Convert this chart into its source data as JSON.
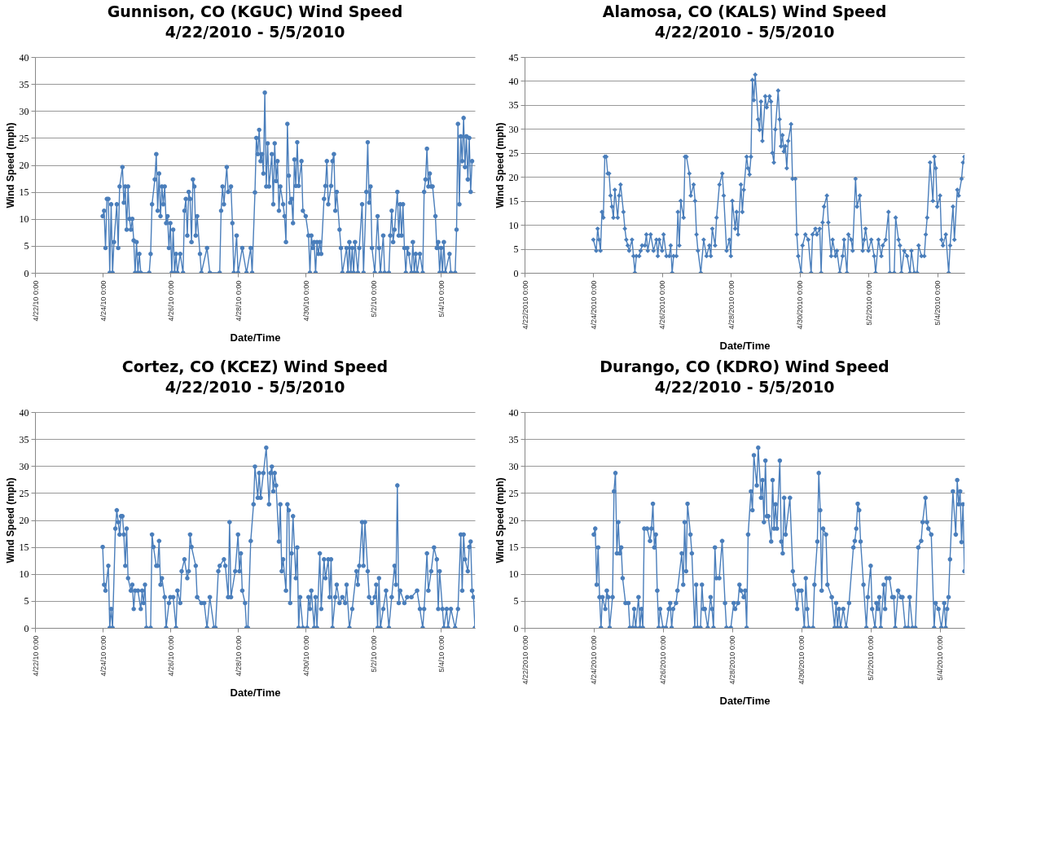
{
  "chart_data": [
    {
      "type": "line",
      "title": "Gunnison, CO (KGUC) Wind Speed",
      "subtitle": "4/22/2010 - 5/5/2010",
      "xlabel": "Date/Time",
      "ylabel": "Wind Speed (mph)",
      "grid": "y",
      "marker": "circle",
      "line_style": "solid",
      "xlim": [
        "2010-04-22T00:00",
        "2010-05-05T00:00"
      ],
      "ylim": [
        0,
        40
      ],
      "yticks": [
        0,
        5,
        10,
        15,
        20,
        25,
        30,
        35,
        40
      ],
      "xticks": [
        {
          "value": "2010-04-22",
          "label": "4/22/10 0:00"
        },
        {
          "value": "2010-04-24",
          "label": "4/24/10 0:00"
        },
        {
          "value": "2010-04-26",
          "label": "4/26/10 0:00"
        },
        {
          "value": "2010-04-28",
          "label": "4/28/10 0:00"
        },
        {
          "value": "2010-04-30",
          "label": "4/30/10 0:00"
        },
        {
          "value": "2010-05-02",
          "label": "5/2/10 0:00"
        },
        {
          "value": "2010-05-04",
          "label": "5/4/10 0:00"
        }
      ],
      "x": [
        "2010-04-24T00:00",
        "2010-04-24T01:00",
        "2010-04-24T02:00",
        "2010-04-24T03:00",
        "2010-04-24T04:00",
        "2010-04-24T05:00",
        "2010-04-24T06:00",
        "2010-04-24T07:00",
        "2010-04-24T08:00",
        "2010-04-24T10:00",
        "2010-04-24T11:00",
        "2010-04-24T12:00",
        "2010-04-24T14:00",
        "2010-04-24T15:00",
        "2010-04-24T16:00",
        "2010-04-24T17:00",
        "2010-04-24T18:00",
        "2010-04-24T19:00",
        "2010-04-24T20:00",
        "2010-04-24T21:00",
        "2010-04-24T22:00",
        "2010-04-24T23:00",
        "2010-04-25T00:00",
        "2010-04-25T01:00",
        "2010-04-25T02:00",
        "2010-04-25T03:00",
        "2010-04-25T09:00",
        "2010-04-25T10:00",
        "2010-04-25T11:00",
        "2010-04-25T13:00",
        "2010-04-25T14:00",
        "2010-04-25T15:00",
        "2010-04-25T16:00",
        "2010-04-25T17:00",
        "2010-04-25T18:00",
        "2010-04-25T19:00",
        "2010-04-25T20:00",
        "2010-04-25T21:00",
        "2010-04-25T22:00",
        "2010-04-25T23:00",
        "2010-04-26T00:00",
        "2010-04-26T01:00",
        "2010-04-26T02:00",
        "2010-04-26T03:00",
        "2010-04-26T04:00",
        "2010-04-26T05:00",
        "2010-04-26T07:00",
        "2010-04-26T09:00",
        "2010-04-26T10:00",
        "2010-04-26T11:00",
        "2010-04-26T12:00",
        "2010-04-26T13:00",
        "2010-04-26T14:00",
        "2010-04-26T15:00",
        "2010-04-26T16:00",
        "2010-04-26T17:00",
        "2010-04-26T18:00",
        "2010-04-26T19:00",
        "2010-04-26T21:00",
        "2010-04-26T22:00",
        "2010-04-27T02:00",
        "2010-04-27T04:00",
        "2010-04-27T11:00",
        "2010-04-27T12:00",
        "2010-04-27T13:00",
        "2010-04-27T14:00",
        "2010-04-27T16:00",
        "2010-04-27T17:00",
        "2010-04-27T19:00",
        "2010-04-27T20:00",
        "2010-04-27T21:00",
        "2010-04-27T23:00",
        "2010-04-28T00:00",
        "2010-04-28T03:00",
        "2010-04-28T06:00",
        "2010-04-28T09:00",
        "2010-04-28T10:00",
        "2010-04-28T12:00",
        "2010-04-28T13:00",
        "2010-04-28T14:00",
        "2010-04-28T15:00",
        "2010-04-28T16:00",
        "2010-04-28T17:00",
        "2010-04-28T18:00",
        "2010-04-28T19:00",
        "2010-04-28T20:00",
        "2010-04-28T21:00",
        "2010-04-28T22:00",
        "2010-04-29T00:00",
        "2010-04-29T01:00",
        "2010-04-29T02:00",
        "2010-04-29T03:00",
        "2010-04-29T04:00",
        "2010-04-29T05:00",
        "2010-04-29T06:00",
        "2010-04-29T08:00",
        "2010-04-29T09:00",
        "2010-04-29T10:00",
        "2010-04-29T11:00",
        "2010-04-29T12:00",
        "2010-04-29T13:00",
        "2010-04-29T14:00",
        "2010-04-29T15:00",
        "2010-04-29T16:00",
        "2010-04-29T17:00",
        "2010-04-29T18:00",
        "2010-04-29T19:00",
        "2010-04-29T21:00",
        "2010-04-29T22:00",
        "2010-04-30T00:00",
        "2010-04-30T02:00",
        "2010-04-30T03:00",
        "2010-04-30T04:00",
        "2010-04-30T05:00",
        "2010-04-30T06:00",
        "2010-04-30T07:00",
        "2010-04-30T08:00",
        "2010-04-30T09:00",
        "2010-04-30T10:00",
        "2010-04-30T11:00",
        "2010-04-30T13:00",
        "2010-04-30T14:00",
        "2010-04-30T15:00",
        "2010-04-30T16:00",
        "2010-04-30T18:00",
        "2010-04-30T19:00",
        "2010-04-30T20:00",
        "2010-04-30T21:00",
        "2010-04-30T22:00",
        "2010-05-01T00:00",
        "2010-05-01T01:00",
        "2010-05-01T02:00",
        "2010-05-01T05:00",
        "2010-05-01T06:00",
        "2010-05-01T07:00",
        "2010-05-01T08:00",
        "2010-05-01T09:00",
        "2010-05-01T10:00",
        "2010-05-01T11:00",
        "2010-05-01T13:00",
        "2010-05-01T14:00",
        "2010-05-01T16:00",
        "2010-05-01T17:00",
        "2010-05-01T19:00",
        "2010-05-01T20:00",
        "2010-05-01T21:00",
        "2010-05-01T22:00",
        "2010-05-01T23:00",
        "2010-05-02T01:00",
        "2010-05-02T03:00",
        "2010-05-02T04:00",
        "2010-05-02T05:00",
        "2010-05-02T07:00",
        "2010-05-02T08:00",
        "2010-05-02T11:00",
        "2010-05-02T12:00",
        "2010-05-02T13:00",
        "2010-05-02T14:00",
        "2010-05-02T15:00",
        "2010-05-02T17:00",
        "2010-05-02T18:00",
        "2010-05-02T19:00",
        "2010-05-02T20:00",
        "2010-05-02T21:00",
        "2010-05-02T22:00",
        "2010-05-02T23:00",
        "2010-05-03T00:00",
        "2010-05-03T01:00",
        "2010-05-03T03:00",
        "2010-05-03T04:00",
        "2010-05-03T05:00",
        "2010-05-03T06:00",
        "2010-05-03T07:00",
        "2010-05-03T09:00",
        "2010-05-03T11:00",
        "2010-05-03T12:00",
        "2010-05-03T13:00",
        "2010-05-03T14:00",
        "2010-05-03T15:00",
        "2010-05-03T16:00",
        "2010-05-03T17:00",
        "2010-05-03T18:00",
        "2010-05-03T20:00",
        "2010-05-03T21:00",
        "2010-05-03T22:00",
        "2010-05-03T23:00",
        "2010-05-04T00:00",
        "2010-05-04T01:00",
        "2010-05-04T02:00",
        "2010-05-04T03:00",
        "2010-05-04T06:00",
        "2010-05-04T07:00",
        "2010-05-04T10:00",
        "2010-05-04T11:00",
        "2010-05-04T12:00",
        "2010-05-04T13:00",
        "2010-05-04T14:00",
        "2010-05-04T15:00",
        "2010-05-04T16:00",
        "2010-05-04T17:00",
        "2010-05-04T18:00",
        "2010-05-04T19:00",
        "2010-05-04T20:00",
        "2010-05-04T21:00",
        "2010-05-04T22:00"
      ],
      "series": [
        {
          "color": "#4a7ebb",
          "values": [
            10.5,
            11.5,
            4.6,
            13.7,
            13.7,
            0,
            12.7,
            0,
            5.7,
            12.7,
            4.6,
            16,
            19.6,
            13,
            16,
            8,
            16,
            10,
            8,
            10,
            6,
            0,
            5.7,
            0,
            3.5,
            0,
            0,
            3.5,
            12.7,
            17.3,
            22,
            11.5,
            18.4,
            10.5,
            16,
            12.7,
            16,
            9.2,
            10.5,
            4.6,
            9.2,
            0,
            8,
            0,
            3.5,
            0,
            3.5,
            0,
            11.5,
            13.7,
            6.9,
            15,
            13.7,
            5.7,
            17.3,
            16,
            6.9,
            10.5,
            3.5,
            0,
            4.6,
            0,
            0,
            11.5,
            16,
            12.7,
            19.6,
            15,
            16,
            9.2,
            0,
            6.9,
            0,
            4.6,
            0,
            4.6,
            0,
            14.9,
            25,
            22,
            26.5,
            20.7,
            22,
            18.4,
            33.4,
            16,
            24,
            16,
            22,
            12.7,
            24,
            17,
            20.7,
            11.5,
            16,
            12.7,
            10.5,
            5.7,
            27.6,
            18,
            13,
            13.7,
            9.2,
            21,
            16.1,
            24.2,
            16.1,
            20.7,
            11.5,
            10.5,
            6.9,
            0,
            6.9,
            4.6,
            5.7,
            0,
            5.7,
            3.5,
            5.7,
            3.5,
            13.7,
            16.1,
            20.7,
            12.7,
            16.1,
            20.7,
            22,
            11.5,
            15,
            8,
            4.6,
            0,
            4.6,
            0,
            5.7,
            0,
            4.6,
            0,
            5.7,
            0,
            4.6,
            12.7,
            0,
            15,
            24.2,
            13,
            16,
            4.6,
            0,
            10.5,
            4.6,
            0,
            6.9,
            0,
            0,
            6.9,
            11.5,
            5.7,
            8,
            15,
            6.9,
            12.7,
            6.9,
            12.7,
            4.6,
            0,
            4.6,
            3.5,
            0,
            5.7,
            0,
            3.5,
            0,
            3.5,
            0,
            15,
            17.3,
            23,
            16,
            18.4,
            16,
            16,
            10.5,
            4.6,
            5.7,
            0,
            4.6,
            0,
            5.7,
            0,
            3.5,
            0,
            0,
            8,
            27.6,
            12.7,
            25.3,
            20.7,
            28.7,
            19.6,
            25.3,
            17.3,
            25,
            15,
            20.7
          ]
        }
      ]
    },
    {
      "type": "line",
      "title": "Alamosa, CO (KALS) Wind Speed",
      "subtitle": "4/22/2010 - 5/5/2010",
      "xlabel": "Date/Time",
      "ylabel": "Wind Speed (mph)",
      "grid": "y",
      "marker": "diamond",
      "line_style": "solid",
      "xlim": [
        "2010-04-22T00:00",
        "2010-05-04T19:00"
      ],
      "ylim": [
        0,
        45
      ],
      "yticks": [
        0,
        5,
        10,
        15,
        20,
        25,
        30,
        35,
        40,
        45
      ],
      "xticks": [
        {
          "value": "2010-04-22",
          "label": "4/22/2010 0:00"
        },
        {
          "value": "2010-04-24",
          "label": "4/24/2010 0:00"
        },
        {
          "value": "2010-04-26",
          "label": "4/26/2010 0:00"
        },
        {
          "value": "2010-04-28",
          "label": "4/28/2010 0:00"
        },
        {
          "value": "2010-04-30",
          "label": "4/30/2010 0:00"
        },
        {
          "value": "2010-05-02",
          "label": "5/2/2010 0:00"
        },
        {
          "value": "2010-05-04",
          "label": "5/4/2010 0:00"
        }
      ],
      "x": [
        "2010-04-24T00:00",
        "2010-04-24T02:00",
        "2010-04-24T03:00",
        "2010-04-24T04:00",
        "2010-04-24T05:00",
        "2010-04-24T06:00",
        "2010-04-24T07:00",
        "2010-04-24T08:00",
        "2010-04-24T09:00",
        "2010-04-24T10:00",
        "2010-04-24T11:00",
        "2010-04-24T12:00",
        "2010-04-24T13:00",
        "2010-04-24T14:00",
        "2010-04-24T15:00",
        "2010-04-24T17:00",
        "2010-04-24T18:00",
        "2010-04-24T19:00",
        "2010-04-24T21:00",
        "2010-04-24T22:00",
        "2010-04-24T23:00",
        "2010-04-25T00:00",
        "2010-04-25T01:00",
        "2010-04-25T03:00",
        "2010-04-25T04:00",
        "2010-04-25T05:00",
        "2010-04-25T06:00",
        "2010-04-25T08:00",
        "2010-04-25T09:00",
        "2010-04-25T10:00",
        "2010-04-25T12:00",
        "2010-04-25T13:00",
        "2010-04-25T14:00",
        "2010-04-25T16:00",
        "2010-04-25T18:00",
        "2010-04-25T20:00",
        "2010-04-25T21:00",
        "2010-04-25T22:00",
        "2010-04-26T00:00",
        "2010-04-26T01:00",
        "2010-04-26T03:00",
        "2010-04-26T05:00",
        "2010-04-26T06:00",
        "2010-04-26T07:00",
        "2010-04-26T08:00",
        "2010-04-26T10:00",
        "2010-04-26T11:00",
        "2010-04-26T12:00",
        "2010-04-26T13:00",
        "2010-04-26T15:00",
        "2010-04-26T16:00",
        "2010-04-26T17:00",
        "2010-04-26T19:00",
        "2010-04-26T20:00",
        "2010-04-26T22:00",
        "2010-04-26T23:00",
        "2010-04-27T00:00",
        "2010-04-27T01:00",
        "2010-04-27T03:00",
        "2010-04-27T05:00",
        "2010-04-27T07:00",
        "2010-04-27T09:00",
        "2010-04-27T10:00",
        "2010-04-27T11:00",
        "2010-04-27T13:00",
        "2010-04-27T14:00",
        "2010-04-27T16:00",
        "2010-04-27T18:00",
        "2010-04-27T19:00",
        "2010-04-27T21:00",
        "2010-04-27T23:00",
        "2010-04-28T00:00",
        "2010-04-28T01:00",
        "2010-04-28T03:00",
        "2010-04-28T04:00",
        "2010-04-28T05:00",
        "2010-04-28T07:00",
        "2010-04-28T08:00",
        "2010-04-28T09:00",
        "2010-04-28T11:00",
        "2010-04-28T12:00",
        "2010-04-28T13:00",
        "2010-04-28T14:00",
        "2010-04-28T15:00",
        "2010-04-28T16:00",
        "2010-04-28T17:00",
        "2010-04-28T19:00",
        "2010-04-28T20:00",
        "2010-04-28T21:00",
        "2010-04-28T22:00",
        "2010-04-29T00:00",
        "2010-04-29T01:00",
        "2010-04-29T03:00",
        "2010-04-29T04:00",
        "2010-04-29T05:00",
        "2010-04-29T06:00",
        "2010-04-29T07:00",
        "2010-04-29T09:00",
        "2010-04-29T10:00",
        "2010-04-29T11:00",
        "2010-04-29T12:00",
        "2010-04-29T13:00",
        "2010-04-29T14:00",
        "2010-04-29T15:00",
        "2010-04-29T16:00",
        "2010-04-29T18:00",
        "2010-04-29T19:00",
        "2010-04-29T21:00",
        "2010-04-29T22:00",
        "2010-04-29T23:00",
        "2010-04-30T01:00",
        "2010-04-30T02:00",
        "2010-04-30T04:00",
        "2010-04-30T06:00",
        "2010-04-30T08:00",
        "2010-04-30T09:00",
        "2010-04-30T11:00",
        "2010-04-30T12:00",
        "2010-04-30T14:00",
        "2010-04-30T15:00",
        "2010-04-30T16:00",
        "2010-04-30T17:00",
        "2010-04-30T19:00",
        "2010-04-30T20:00",
        "2010-04-30T22:00",
        "2010-04-30T23:00",
        "2010-05-01T01:00",
        "2010-05-01T02:00",
        "2010-05-01T04:00",
        "2010-05-01T06:00",
        "2010-05-01T07:00",
        "2010-05-01T09:00",
        "2010-05-01T10:00",
        "2010-05-01T12:00",
        "2010-05-01T13:00",
        "2010-05-01T15:00",
        "2010-05-01T16:00",
        "2010-05-01T18:00",
        "2010-05-01T20:00",
        "2010-05-01T21:00",
        "2010-05-01T22:00",
        "2010-05-02T00:00",
        "2010-05-02T02:00",
        "2010-05-02T04:00",
        "2010-05-02T05:00",
        "2010-05-02T07:00",
        "2010-05-02T09:00",
        "2010-05-02T10:00",
        "2010-05-02T12:00",
        "2010-05-02T14:00",
        "2010-05-02T15:00",
        "2010-05-02T18:00",
        "2010-05-02T19:00",
        "2010-05-02T21:00",
        "2010-05-02T22:00",
        "2010-05-02T23:00",
        "2010-05-03T01:00",
        "2010-05-03T03:00",
        "2010-05-03T05:00",
        "2010-05-03T06:00",
        "2010-05-03T08:00",
        "2010-05-03T10:00",
        "2010-05-03T11:00",
        "2010-05-03T13:00",
        "2010-05-03T15:00",
        "2010-05-03T16:00",
        "2010-05-03T17:00",
        "2010-05-03T19:00",
        "2010-05-03T21:00",
        "2010-05-03T22:00",
        "2010-05-03T23:00",
        "2010-05-04T00:00",
        "2010-05-04T02:00",
        "2010-05-04T03:00",
        "2010-05-04T04:00",
        "2010-05-04T06:00",
        "2010-05-04T08:00",
        "2010-05-04T09:00",
        "2010-05-04T11:00",
        "2010-05-04T12:00",
        "2010-05-04T14:00",
        "2010-05-04T15:00",
        "2010-05-04T17:00",
        "2010-05-04T18:00",
        "2010-05-04T19:00"
      ],
      "series": [
        {
          "color": "#4a7ebb",
          "values": [
            6.9,
            4.6,
            9.2,
            6.9,
            4.6,
            12.7,
            11.5,
            24.2,
            24.2,
            20.7,
            20.7,
            16.1,
            13.8,
            11.5,
            17.3,
            11.5,
            16.1,
            18.4,
            12.7,
            9.2,
            6.9,
            5.7,
            4.6,
            6.9,
            3.5,
            0,
            3.5,
            3.5,
            4.6,
            5.7,
            5.7,
            8,
            4.6,
            8,
            4.6,
            6.9,
            3.5,
            6.9,
            4.6,
            8,
            3.5,
            3.5,
            5.7,
            0,
            3.5,
            3.5,
            12.7,
            5.7,
            15,
            11.5,
            24.2,
            24.2,
            20.7,
            16.1,
            18.4,
            15,
            8,
            4.6,
            0,
            6.9,
            3.5,
            5.7,
            3.5,
            9.2,
            5.7,
            11.5,
            18.4,
            20.7,
            16.1,
            4.6,
            6.9,
            3.5,
            15,
            9.2,
            12.7,
            8,
            18.4,
            12.7,
            17.3,
            24.2,
            21.8,
            20.5,
            24.2,
            40.2,
            36,
            41.3,
            32,
            29.8,
            35.7,
            27.5,
            36.8,
            34.5,
            36.8,
            35.7,
            25,
            23,
            29.9,
            38,
            32,
            26.4,
            28.7,
            25.3,
            26.4,
            21.8,
            27.5,
            31,
            19.6,
            19.6,
            8,
            3.5,
            0,
            5.7,
            8,
            6.9,
            0,
            8,
            9.2,
            8,
            9.2,
            0,
            10.5,
            13.8,
            16.1,
            10.5,
            3.5,
            6.9,
            3.5,
            4.6,
            0,
            3.5,
            6.9,
            0,
            8,
            6.9,
            4.6,
            19.6,
            13.8,
            16.1,
            4.6,
            6.9,
            9.2,
            4.6,
            6.9,
            3.5,
            0,
            6.9,
            3.5,
            5.7,
            6.9,
            12.7,
            0,
            0,
            11.5,
            6.9,
            5.7,
            0,
            4.6,
            3.5,
            0,
            4.6,
            0,
            0,
            5.7,
            3.5,
            3.5,
            8,
            11.5,
            23,
            15,
            24.2,
            21.8,
            13.8,
            16.1,
            6.9,
            5.7,
            8,
            0,
            5.7,
            13.8,
            6.9,
            17.3,
            16.1,
            19.6,
            23,
            24.2
          ]
        }
      ]
    },
    {
      "type": "line",
      "title": "Cortez, CO (KCEZ) Wind Speed",
      "subtitle": "4/22/2010 - 5/5/2010",
      "xlabel": "Date/Time",
      "ylabel": "Wind Speed (mph)",
      "grid": "y",
      "marker": "circle",
      "line_style": "solid",
      "xlim": [
        "2010-04-22T00:00",
        "2010-05-05T00:00"
      ],
      "ylim": [
        0,
        40
      ],
      "yticks": [
        0,
        5,
        10,
        15,
        20,
        25,
        30,
        35,
        40
      ],
      "xticks": [
        {
          "value": "2010-04-22",
          "label": "4/22/10 0:00"
        },
        {
          "value": "2010-04-24",
          "label": "4/24/10 0:00"
        },
        {
          "value": "2010-04-26",
          "label": "4/26/10 0:00"
        },
        {
          "value": "2010-04-28",
          "label": "4/28/10 0:00"
        },
        {
          "value": "2010-04-30",
          "label": "4/30/10 0:00"
        },
        {
          "value": "2010-05-02",
          "label": "5/2/10 0:00"
        },
        {
          "value": "2010-05-04",
          "label": "5/4/10 0:00"
        }
      ],
      "x": [
        "2010-04-24T00:00",
        "2010-04-24T01:00",
        "2010-04-24T02:00",
        "2010-04-24T04:00",
        "2010-04-24T05:00",
        "2010-04-24T06:00",
        "2010-04-24T07:00",
        "2010-04-24T09:00",
        "2010-04-24T10:00",
        "2010-04-24T11:00",
        "2010-04-24T12:00",
        "2010-04-24T13:00",
        "2010-04-24T14:00",
        "2010-04-24T15:00",
        "2010-04-24T16:00",
        "2010-04-24T17:00",
        "2010-04-24T18:00",
        "2010-04-24T20:00",
        "2010-04-24T21:00",
        "2010-04-24T22:00",
        "2010-04-24T23:00",
        "2010-04-25T01:00",
        "2010-04-25T03:00",
        "2010-04-25T04:00",
        "2010-04-25T05:00",
        "2010-04-25T06:00",
        "2010-04-25T07:00",
        "2010-04-25T10:00",
        "2010-04-25T11:00",
        "2010-04-25T12:00",
        "2010-04-25T14:00",
        "2010-04-25T15:00",
        "2010-04-25T16:00",
        "2010-04-25T17:00",
        "2010-04-25T18:00",
        "2010-04-25T20:00",
        "2010-04-25T21:00",
        "2010-04-25T23:00",
        "2010-04-26T00:00",
        "2010-04-26T02:00",
        "2010-04-26T04:00",
        "2010-04-26T05:00",
        "2010-04-26T07:00",
        "2010-04-26T08:00",
        "2010-04-26T10:00",
        "2010-04-26T12:00",
        "2010-04-26T13:00",
        "2010-04-26T14:00",
        "2010-04-26T15:00",
        "2010-04-26T18:00",
        "2010-04-26T19:00",
        "2010-04-26T22:00",
        "2010-04-27T00:00",
        "2010-04-27T02:00",
        "2010-04-27T04:00",
        "2010-04-27T07:00",
        "2010-04-27T08:00",
        "2010-04-27T10:00",
        "2010-04-27T11:00",
        "2010-04-27T14:00",
        "2010-04-27T15:00",
        "2010-04-27T17:00",
        "2010-04-27T18:00",
        "2010-04-27T19:00",
        "2010-04-27T22:00",
        "2010-04-28T00:00",
        "2010-04-28T01:00",
        "2010-04-28T02:00",
        "2010-04-28T03:00",
        "2010-04-28T05:00",
        "2010-04-28T06:00",
        "2010-04-28T07:00",
        "2010-04-28T09:00",
        "2010-04-28T11:00",
        "2010-04-28T12:00",
        "2010-04-28T14:00",
        "2010-04-28T15:00",
        "2010-04-28T16:00",
        "2010-04-28T18:00",
        "2010-04-28T20:00",
        "2010-04-28T22:00",
        "2010-04-28T23:00",
        "2010-04-29T00:00",
        "2010-04-29T01:00",
        "2010-04-29T02:00",
        "2010-04-29T03:00",
        "2010-04-29T05:00",
        "2010-04-29T06:00",
        "2010-04-29T07:00",
        "2010-04-29T08:00",
        "2010-04-29T10:00",
        "2010-04-29T11:00",
        "2010-04-29T12:00",
        "2010-04-29T13:00",
        "2010-04-29T14:00",
        "2010-04-29T15:00",
        "2010-04-29T17:00",
        "2010-04-29T18:00",
        "2010-04-29T19:00",
        "2010-04-29T20:00",
        "2010-04-29T22:00",
        "2010-04-30T01:00",
        "2010-04-30T02:00",
        "2010-04-30T03:00",
        "2010-04-30T04:00",
        "2010-04-30T06:00",
        "2010-04-30T07:00",
        "2010-04-30T08:00",
        "2010-04-30T10:00",
        "2010-04-30T11:00",
        "2010-04-30T13:00",
        "2010-04-30T14:00",
        "2010-04-30T16:00",
        "2010-04-30T17:00",
        "2010-04-30T18:00",
        "2010-04-30T19:00",
        "2010-04-30T21:00",
        "2010-04-30T22:00",
        "2010-05-01T00:00",
        "2010-05-01T02:00",
        "2010-05-01T04:00",
        "2010-05-01T05:00",
        "2010-05-01T07:00",
        "2010-05-01T09:00",
        "2010-05-01T12:00",
        "2010-05-01T13:00",
        "2010-05-01T14:00",
        "2010-05-01T16:00",
        "2010-05-01T17:00",
        "2010-05-01T18:00",
        "2010-05-01T20:00",
        "2010-05-01T21:00",
        "2010-05-01T23:00",
        "2010-05-02T01:00",
        "2010-05-02T02:00",
        "2010-05-02T03:00",
        "2010-05-02T04:00",
        "2010-05-02T05:00",
        "2010-05-02T07:00",
        "2010-05-02T09:00",
        "2010-05-02T11:00",
        "2010-05-02T13:00",
        "2010-05-02T15:00",
        "2010-05-02T16:00",
        "2010-05-02T17:00",
        "2010-05-02T18:00",
        "2010-05-02T19:00",
        "2010-05-02T22:00",
        "2010-05-03T00:00",
        "2010-05-03T03:00",
        "2010-05-03T07:00",
        "2010-05-03T09:00",
        "2010-05-03T11:00",
        "2010-05-03T12:00",
        "2010-05-03T14:00",
        "2010-05-03T15:00",
        "2010-05-03T17:00",
        "2010-05-03T19:00",
        "2010-05-03T21:00",
        "2010-05-03T22:00",
        "2010-05-03T23:00",
        "2010-05-04T01:00",
        "2010-05-04T02:00",
        "2010-05-04T04:00",
        "2010-05-04T05:00",
        "2010-05-04T07:00",
        "2010-05-04T10:00",
        "2010-05-04T12:00",
        "2010-05-04T14:00",
        "2010-05-04T15:00",
        "2010-05-04T16:00",
        "2010-05-04T17:00",
        "2010-05-04T19:00",
        "2010-05-04T20:00",
        "2010-05-04T21:00",
        "2010-05-04T22:00",
        "2010-05-04T23:00",
        "2010-05-05T00:00"
      ],
      "series": [
        {
          "color": "#4a7ebb",
          "values": [
            15,
            8,
            6.9,
            11.5,
            0,
            3.5,
            0,
            18.4,
            21.8,
            19.6,
            17.3,
            20.7,
            20.7,
            17.3,
            11.5,
            18.4,
            9.2,
            6.9,
            8,
            3.5,
            6.9,
            6.9,
            3.5,
            6.9,
            4.6,
            8,
            0,
            0,
            17.3,
            15,
            11.5,
            11.5,
            16.1,
            8,
            9.2,
            5.7,
            0,
            4.6,
            5.7,
            5.7,
            0,
            6.9,
            4.6,
            10.5,
            12.7,
            9.2,
            10.5,
            17.3,
            15,
            11.5,
            5.7,
            4.6,
            4.6,
            0,
            5.7,
            0,
            0,
            10.5,
            11.5,
            12.7,
            11.5,
            5.7,
            19.6,
            5.7,
            10.5,
            17.3,
            10.5,
            13.8,
            6.9,
            4.6,
            0,
            0,
            16.1,
            22.9,
            29.9,
            24.1,
            28.7,
            24.1,
            28.7,
            33.4,
            22.9,
            28.7,
            29.9,
            25.3,
            28.7,
            26.4,
            16,
            22.9,
            10.5,
            12.7,
            6.9,
            22.9,
            21.8,
            4.6,
            13.8,
            20.7,
            9.2,
            14.9,
            0,
            5.7,
            0,
            0,
            5.7,
            3.5,
            6.9,
            0,
            5.7,
            0,
            13.8,
            3.5,
            12.7,
            9.2,
            12.7,
            5.7,
            12.7,
            0,
            5.7,
            8,
            4.6,
            5.7,
            4.6,
            8,
            0,
            3.5,
            10.5,
            8,
            11.5,
            19.6,
            11.5,
            19.6,
            10.5,
            5.7,
            4.6,
            5.7,
            8,
            0,
            9.2,
            0,
            3.5,
            6.9,
            0,
            5.7,
            11.5,
            8,
            26.4,
            4.6,
            6.9,
            4.6,
            5.7,
            5.7,
            6.9,
            3.5,
            0,
            3.5,
            13.8,
            6.9,
            10.5,
            14.9,
            12.7,
            3.5,
            10.5,
            3.5,
            0,
            3.5,
            0,
            3.5,
            0,
            3.5,
            17.3,
            6.9,
            17.3,
            12.7,
            10.5,
            15,
            16,
            6.9,
            5.7,
            0
          ]
        }
      ]
    },
    {
      "type": "line",
      "title": "Durango, CO (KDRO) Wind Speed",
      "subtitle": "4/22/2010 - 5/5/2010",
      "xlabel": "Date/Time",
      "ylabel": "Wind Speed (mph)",
      "grid": "y",
      "marker": "circle",
      "line_style": "solid",
      "xlim": [
        "2010-04-22T00:00",
        "2010-05-04T17:00"
      ],
      "ylim": [
        0,
        40
      ],
      "yticks": [
        0,
        5,
        10,
        15,
        20,
        25,
        30,
        35,
        40
      ],
      "xticks": [
        {
          "value": "2010-04-22",
          "label": "4/22/2010 0:00"
        },
        {
          "value": "2010-04-24",
          "label": "4/24/2010 0:00"
        },
        {
          "value": "2010-04-26",
          "label": "4/26/2010 0:00"
        },
        {
          "value": "2010-04-28",
          "label": "4/28/2010 0:00"
        },
        {
          "value": "2010-04-30",
          "label": "4/30/2010 0:00"
        },
        {
          "value": "2010-05-02",
          "label": "5/2/2010 0:00"
        },
        {
          "value": "2010-05-04",
          "label": "5/4/2010 0:00"
        }
      ],
      "x": [
        "2010-04-24T00:00",
        "2010-04-24T01:00",
        "2010-04-24T02:00",
        "2010-04-24T03:00",
        "2010-04-24T04:00",
        "2010-04-24T05:00",
        "2010-04-24T06:00",
        "2010-04-24T08:00",
        "2010-04-24T09:00",
        "2010-04-24T10:00",
        "2010-04-24T11:00",
        "2010-04-24T13:00",
        "2010-04-24T14:00",
        "2010-04-24T15:00",
        "2010-04-24T16:00",
        "2010-04-24T17:00",
        "2010-04-24T18:00",
        "2010-04-24T19:00",
        "2010-04-24T20:00",
        "2010-04-24T22:00",
        "2010-04-25T00:00",
        "2010-04-25T01:00",
        "2010-04-25T03:00",
        "2010-04-25T04:00",
        "2010-04-25T05:00",
        "2010-04-25T07:00",
        "2010-04-25T08:00",
        "2010-04-25T09:00",
        "2010-04-25T10:00",
        "2010-04-25T11:00",
        "2010-04-25T13:00",
        "2010-04-25T15:00",
        "2010-04-25T16:00",
        "2010-04-25T17:00",
        "2010-04-25T18:00",
        "2010-04-25T19:00",
        "2010-04-25T20:00",
        "2010-04-25T21:00",
        "2010-04-25T22:00",
        "2010-04-26T00:00",
        "2010-04-26T02:00",
        "2010-04-26T04:00",
        "2010-04-26T05:00",
        "2010-04-26T06:00",
        "2010-04-26T07:00",
        "2010-04-26T09:00",
        "2010-04-26T10:00",
        "2010-04-26T13:00",
        "2010-04-26T14:00",
        "2010-04-26T15:00",
        "2010-04-26T16:00",
        "2010-04-26T17:00",
        "2010-04-26T19:00",
        "2010-04-26T20:00",
        "2010-04-26T22:00",
        "2010-04-26T23:00",
        "2010-04-27T00:00",
        "2010-04-27T02:00",
        "2010-04-27T03:00",
        "2010-04-27T04:00",
        "2010-04-27T05:00",
        "2010-04-27T07:00",
        "2010-04-27T09:00",
        "2010-04-27T10:00",
        "2010-04-27T11:00",
        "2010-04-27T12:00",
        "2010-04-27T13:00",
        "2010-04-27T15:00",
        "2010-04-27T17:00",
        "2010-04-27T19:00",
        "2010-04-27T20:00",
        "2010-04-27T23:00",
        "2010-04-28T01:00",
        "2010-04-28T02:00",
        "2010-04-28T04:00",
        "2010-04-28T05:00",
        "2010-04-28T06:00",
        "2010-04-28T08:00",
        "2010-04-28T09:00",
        "2010-04-28T10:00",
        "2010-04-28T11:00",
        "2010-04-28T13:00",
        "2010-04-28T14:00",
        "2010-04-28T15:00",
        "2010-04-28T17:00",
        "2010-04-28T18:00",
        "2010-04-28T20:00",
        "2010-04-28T21:00",
        "2010-04-28T22:00",
        "2010-04-28T23:00",
        "2010-04-29T00:00",
        "2010-04-29T01:00",
        "2010-04-29T03:00",
        "2010-04-29T04:00",
        "2010-04-29T05:00",
        "2010-04-29T06:00",
        "2010-04-29T07:00",
        "2010-04-29T09:00",
        "2010-04-29T10:00",
        "2010-04-29T11:00",
        "2010-04-29T12:00",
        "2010-04-29T13:00",
        "2010-04-29T16:00",
        "2010-04-29T18:00",
        "2010-04-29T19:00",
        "2010-04-29T21:00",
        "2010-04-29T22:00",
        "2010-04-30T00:00",
        "2010-04-30T02:00",
        "2010-04-30T03:00",
        "2010-04-30T04:00",
        "2010-04-30T05:00",
        "2010-04-30T08:00",
        "2010-04-30T09:00",
        "2010-04-30T11:00",
        "2010-04-30T12:00",
        "2010-04-30T13:00",
        "2010-04-30T14:00",
        "2010-04-30T15:00",
        "2010-04-30T17:00",
        "2010-04-30T18:00",
        "2010-04-30T21:00",
        "2010-04-30T23:00",
        "2010-05-01T00:00",
        "2010-05-01T01:00",
        "2010-05-01T02:00",
        "2010-05-01T03:00",
        "2010-05-01T05:00",
        "2010-05-01T07:00",
        "2010-05-01T09:00",
        "2010-05-01T12:00",
        "2010-05-01T13:00",
        "2010-05-01T14:00",
        "2010-05-01T15:00",
        "2010-05-01T16:00",
        "2010-05-01T17:00",
        "2010-05-01T19:00",
        "2010-05-01T21:00",
        "2010-05-01T22:00",
        "2010-05-02T00:00",
        "2010-05-02T01:00",
        "2010-05-02T03:00",
        "2010-05-02T04:00",
        "2010-05-02T05:00",
        "2010-05-02T06:00",
        "2010-05-02T07:00",
        "2010-05-02T09:00",
        "2010-05-02T10:00",
        "2010-05-02T11:00",
        "2010-05-02T13:00",
        "2010-05-02T15:00",
        "2010-05-02T16:00",
        "2010-05-02T17:00",
        "2010-05-02T19:00",
        "2010-05-02T21:00",
        "2010-05-02T22:00",
        "2010-05-03T00:00",
        "2010-05-03T02:00",
        "2010-05-03T03:00",
        "2010-05-03T05:00",
        "2010-05-03T07:00",
        "2010-05-03T09:00",
        "2010-05-03T11:00",
        "2010-05-03T12:00",
        "2010-05-03T14:00",
        "2010-05-03T15:00",
        "2010-05-03T16:00",
        "2010-05-03T18:00",
        "2010-05-03T20:00",
        "2010-05-03T21:00",
        "2010-05-03T23:00",
        "2010-05-04T01:00",
        "2010-05-04T03:00",
        "2010-05-04T04:00",
        "2010-05-04T05:00",
        "2010-05-04T06:00",
        "2010-05-04T07:00",
        "2010-05-04T09:00",
        "2010-05-04T11:00",
        "2010-05-04T12:00",
        "2010-05-04T13:00",
        "2010-05-04T14:00",
        "2010-05-04T15:00",
        "2010-05-04T16:00",
        "2010-05-04T17:00"
      ],
      "series": [
        {
          "color": "#4a7ebb",
          "values": [
            17.3,
            18.4,
            8,
            14.9,
            5.7,
            0,
            5.7,
            3.5,
            6.9,
            5.7,
            0,
            5.7,
            25.3,
            28.7,
            13.8,
            19.6,
            13.8,
            14.9,
            9.2,
            4.6,
            4.6,
            0,
            0,
            3.5,
            0,
            5.7,
            0,
            3.5,
            0,
            18.4,
            18.4,
            16.1,
            18.4,
            23,
            14.9,
            17.3,
            6.9,
            0,
            3.5,
            0,
            0,
            3.5,
            4.6,
            0,
            3.5,
            4.6,
            6.9,
            13.8,
            8,
            19.6,
            10.5,
            23,
            17.3,
            13.8,
            0,
            8,
            0,
            0,
            8,
            3.5,
            3.5,
            0,
            5.7,
            3.5,
            0,
            14.9,
            9.2,
            9.2,
            16.1,
            4.6,
            0,
            0,
            4.6,
            3.5,
            4.6,
            8,
            6.9,
            5.7,
            6.9,
            0,
            17.3,
            25.3,
            21.8,
            32,
            26.4,
            33.4,
            24.1,
            27.4,
            19.6,
            31,
            20.7,
            20.7,
            16,
            27.4,
            18.4,
            22.9,
            18.4,
            31,
            16,
            13.8,
            24.1,
            17.3,
            24.1,
            10.5,
            8,
            3.5,
            6.9,
            6.9,
            0,
            9.2,
            3.5,
            0,
            0,
            8,
            16,
            28.7,
            21.8,
            6.9,
            18.4,
            17.3,
            8,
            5.7,
            0,
            4.6,
            0,
            3.5,
            0,
            3.5,
            0,
            4.6,
            14.9,
            16.1,
            18.4,
            23,
            21.8,
            16,
            8,
            0,
            5.7,
            11.5,
            3.5,
            0,
            4.6,
            3.5,
            5.7,
            0,
            8,
            3.5,
            9.2,
            9.2,
            5.7,
            5.7,
            0,
            6.9,
            5.7,
            5.7,
            0,
            0,
            5.7,
            0,
            0,
            14.9,
            16.1,
            19.6,
            24.1,
            19.6,
            18.4,
            17.3,
            0,
            4.6,
            3.5,
            0,
            4.6,
            0,
            3.5,
            5.7,
            12.7,
            25.3,
            17.3,
            27.4,
            22.9,
            25.3,
            15.9,
            22.9,
            10.5
          ]
        }
      ]
    }
  ]
}
